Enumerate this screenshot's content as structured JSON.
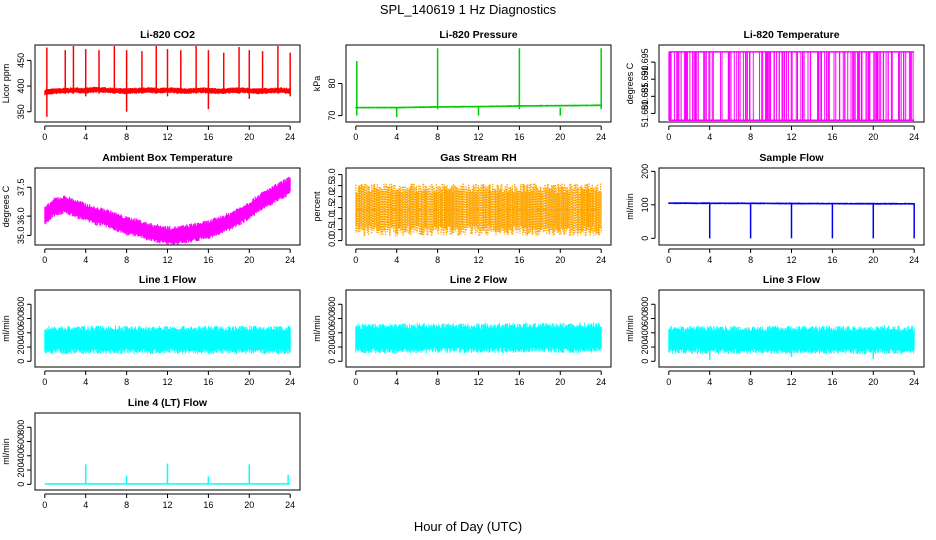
{
  "figure": {
    "title": "SPL_140619  1 Hz Diagnostics",
    "xlabel": "Hour of Day (UTC)"
  },
  "chart_data": [
    {
      "type": "line",
      "title": "Li-820 CO2",
      "ylabel": "Licor ppm",
      "color": "#ff0000",
      "xlim": [
        0,
        24
      ],
      "xticks": [
        0,
        4,
        8,
        12,
        16,
        20,
        24
      ],
      "ylim": [
        330,
        480
      ],
      "yticks": [
        350,
        400,
        450
      ],
      "x": [
        0,
        1,
        2,
        3,
        4,
        5,
        6,
        7,
        8,
        9,
        10,
        11,
        12,
        13,
        14,
        15,
        16,
        17,
        18,
        19,
        20,
        21,
        22,
        23,
        24
      ],
      "y": [
        388,
        390,
        391,
        392,
        391,
        393,
        392,
        391,
        390,
        391,
        392,
        391,
        392,
        391,
        390,
        392,
        391,
        390,
        391,
        392,
        391,
        390,
        391,
        392,
        390
      ],
      "band": [
        6,
        6,
        6,
        6,
        6,
        6,
        6,
        6,
        6,
        6,
        6,
        6,
        6,
        6,
        6,
        6,
        6,
        6,
        6,
        6,
        6,
        6,
        6,
        6,
        6
      ],
      "spikes": [
        [
          0.2,
          475,
          340
        ],
        [
          2,
          470,
          385
        ],
        [
          2.8,
          478,
          385
        ],
        [
          4,
          472,
          380
        ],
        [
          5.3,
          470,
          385
        ],
        [
          6.8,
          478,
          385
        ],
        [
          8,
          470,
          350
        ],
        [
          9.5,
          468,
          385
        ],
        [
          10.9,
          478,
          385
        ],
        [
          12,
          472,
          380
        ],
        [
          13.3,
          470,
          385
        ],
        [
          14.8,
          478,
          385
        ],
        [
          16,
          470,
          355
        ],
        [
          17.5,
          465,
          385
        ],
        [
          19,
          476,
          385
        ],
        [
          20,
          470,
          375
        ],
        [
          21.3,
          468,
          385
        ],
        [
          22.8,
          478,
          385
        ],
        [
          24,
          465,
          380
        ]
      ]
    },
    {
      "type": "line",
      "title": "Li-820 Pressure",
      "ylabel": "kPa",
      "color": "#00cc00",
      "xlim": [
        0,
        24
      ],
      "xticks": [
        0,
        4,
        8,
        12,
        16,
        20,
        24
      ],
      "ylim": [
        68,
        92
      ],
      "yticks": [
        70,
        80
      ],
      "x": [
        0,
        4,
        8,
        12,
        16,
        20,
        24
      ],
      "y": [
        72.5,
        72.5,
        72.7,
        72.8,
        73.0,
        73.1,
        73.2
      ],
      "band": [
        0.3,
        0.3,
        0.3,
        0.3,
        0.3,
        0.3,
        0.3
      ],
      "spikes": [
        [
          0.1,
          87,
          70
        ],
        [
          4,
          72.5,
          69.5
        ],
        [
          8,
          91,
          72
        ],
        [
          12,
          72.5,
          70
        ],
        [
          16,
          91,
          72
        ],
        [
          20,
          72.5,
          70
        ],
        [
          24,
          91,
          72
        ]
      ]
    },
    {
      "type": "line",
      "title": "Li-820 Temperature",
      "ylabel": "degrees C",
      "color": "#ff00ff",
      "xlim": [
        0,
        24
      ],
      "xticks": [
        0,
        4,
        8,
        12,
        16,
        20,
        24
      ],
      "ylim": [
        51.6775,
        51.7
      ],
      "yticks": [
        51.68,
        51.685,
        51.69,
        51.695
      ],
      "x": [
        0,
        24
      ],
      "y": [
        51.698,
        51.698
      ],
      "band": [
        0,
        0
      ],
      "spikes": [],
      "step_toggle": {
        "high": 51.698,
        "low": 51.678
      }
    },
    {
      "type": "line",
      "title": "Ambient Box Temperature",
      "ylabel": "degrees C",
      "color": "#ff00ff",
      "xlim": [
        0,
        24
      ],
      "xticks": [
        0,
        4,
        8,
        12,
        16,
        20,
        24
      ],
      "ylim": [
        34.5,
        38.5
      ],
      "yticks": [
        35.0,
        36.0,
        37.5
      ],
      "x": [
        0,
        1,
        2,
        3,
        4,
        5,
        6,
        7,
        8,
        9,
        10,
        11,
        12,
        13,
        14,
        15,
        16,
        17,
        18,
        19,
        20,
        21,
        22,
        23,
        24
      ],
      "y": [
        36.0,
        36.5,
        36.6,
        36.4,
        36.2,
        36.0,
        35.9,
        35.7,
        35.5,
        35.4,
        35.2,
        35.1,
        35.0,
        35.0,
        35.1,
        35.2,
        35.3,
        35.5,
        35.7,
        36.0,
        36.3,
        36.7,
        37.0,
        37.3,
        37.6
      ],
      "band": [
        0.5,
        0.5,
        0.5,
        0.5,
        0.5,
        0.5,
        0.5,
        0.5,
        0.5,
        0.5,
        0.5,
        0.5,
        0.5,
        0.5,
        0.5,
        0.5,
        0.5,
        0.5,
        0.5,
        0.5,
        0.5,
        0.5,
        0.5,
        0.5,
        0.5
      ],
      "spikes": []
    },
    {
      "type": "line",
      "title": "Gas Stream RH",
      "ylabel": "percent",
      "color": "#ffa500",
      "xlim": [
        0,
        24
      ],
      "xticks": [
        0,
        4,
        8,
        12,
        16,
        20,
        24
      ],
      "ylim": [
        -0.2,
        3.3
      ],
      "yticks": [
        0.0,
        0.5,
        1.0,
        1.5,
        2.0,
        2.5,
        3.0
      ],
      "x": [
        0,
        24
      ],
      "y": [
        1.4,
        1.4
      ],
      "band": [
        1.2,
        1.2
      ],
      "spikes": [],
      "dotted": true
    },
    {
      "type": "line",
      "title": "Sample Flow",
      "ylabel": "ml/min",
      "color": "#0000ee",
      "xlim": [
        0,
        24
      ],
      "xticks": [
        0,
        4,
        8,
        12,
        16,
        20,
        24
      ],
      "ylim": [
        -20,
        210
      ],
      "yticks": [
        0,
        100,
        200
      ],
      "x": [
        0,
        24
      ],
      "y": [
        105,
        103
      ],
      "band": [
        3,
        3
      ],
      "spikes": [
        [
          4,
          105,
          0
        ],
        [
          8,
          105,
          0
        ],
        [
          12,
          105,
          0
        ],
        [
          16,
          105,
          0
        ],
        [
          20,
          105,
          0
        ],
        [
          24,
          105,
          0
        ]
      ]
    },
    {
      "type": "line",
      "title": "Line 1 Flow",
      "ylabel": "ml/min",
      "color": "#00ffff",
      "xlim": [
        0,
        24
      ],
      "xticks": [
        0,
        4,
        8,
        12,
        16,
        20,
        24
      ],
      "ylim": [
        -80,
        1000
      ],
      "yticks": [
        0,
        200,
        400,
        600,
        800
      ],
      "x": [
        0,
        24
      ],
      "y": [
        300,
        300
      ],
      "band": [
        200,
        200
      ],
      "spikes": []
    },
    {
      "type": "line",
      "title": "Line 2 Flow",
      "ylabel": "ml/min",
      "color": "#00ffff",
      "xlim": [
        0,
        24
      ],
      "xticks": [
        0,
        4,
        8,
        12,
        16,
        20,
        24
      ],
      "ylim": [
        -80,
        1000
      ],
      "yticks": [
        0,
        200,
        400,
        600,
        800
      ],
      "x": [
        0,
        24
      ],
      "y": [
        320,
        330
      ],
      "band": [
        210,
        215
      ],
      "spikes": []
    },
    {
      "type": "line",
      "title": "Line 3 Flow",
      "ylabel": "ml/min",
      "color": "#00ffff",
      "xlim": [
        0,
        24
      ],
      "xticks": [
        0,
        4,
        8,
        12,
        16,
        20,
        24
      ],
      "ylim": [
        -80,
        1000
      ],
      "yticks": [
        0,
        200,
        400,
        600,
        800
      ],
      "x": [
        0,
        24
      ],
      "y": [
        300,
        300
      ],
      "band": [
        200,
        200
      ],
      "spikes": [
        [
          4,
          300,
          20
        ],
        [
          12,
          300,
          60
        ],
        [
          20,
          300,
          30
        ]
      ]
    },
    {
      "type": "line",
      "title": "Line 4 (LT) Flow",
      "ylabel": "ml/min",
      "color": "#00ffff",
      "xlim": [
        0,
        24
      ],
      "xticks": [
        0,
        4,
        8,
        12,
        16,
        20,
        24
      ],
      "ylim": [
        -80,
        1000
      ],
      "yticks": [
        0,
        200,
        400,
        600,
        800
      ],
      "x": [
        0,
        24
      ],
      "y": [
        5,
        5
      ],
      "band": [
        0,
        0
      ],
      "spikes": [
        [
          4,
          280,
          0
        ],
        [
          8,
          120,
          0
        ],
        [
          12,
          290,
          0
        ],
        [
          16,
          110,
          0
        ],
        [
          20,
          280,
          0
        ],
        [
          23.8,
          130,
          0
        ]
      ]
    }
  ]
}
